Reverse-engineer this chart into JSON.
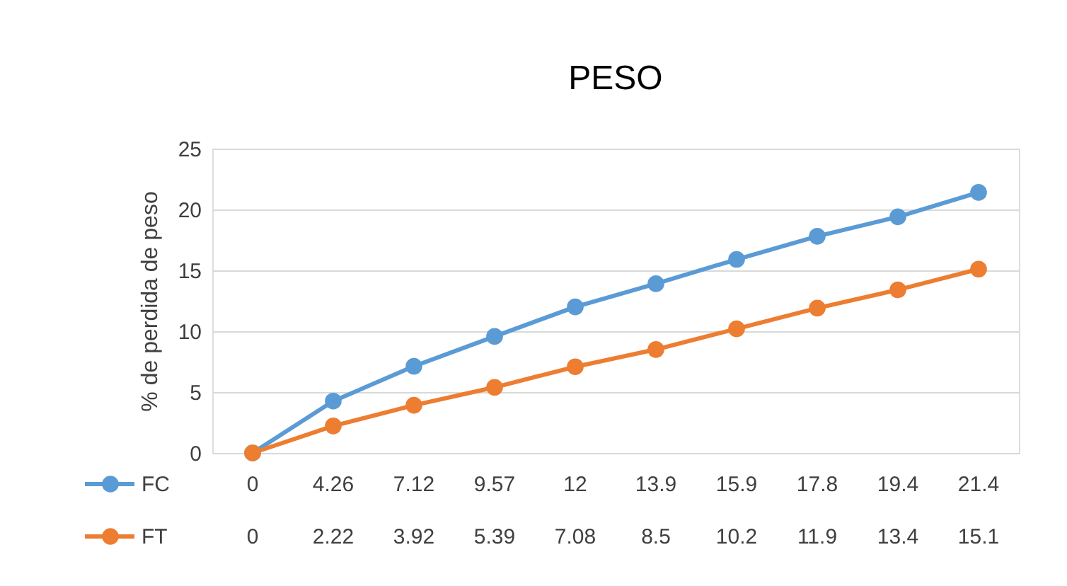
{
  "chart_data": {
    "type": "line",
    "title": "PESO",
    "ylabel": "% de perdida de peso",
    "categories": [
      null,
      null,
      null,
      null,
      null,
      null,
      null,
      null,
      null,
      null
    ],
    "series": [
      {
        "name": "FC",
        "color": "#5b9bd5",
        "values": [
          0,
          4.26,
          7.12,
          9.57,
          12,
          13.9,
          15.9,
          17.8,
          19.4,
          21.4
        ]
      },
      {
        "name": "FT",
        "color": "#ed7d31",
        "values": [
          0,
          2.22,
          3.92,
          5.39,
          7.08,
          8.5,
          10.2,
          11.9,
          13.4,
          15.1
        ]
      }
    ],
    "ylim": [
      0,
      25
    ],
    "yticks": [
      0,
      5,
      10,
      15,
      20,
      25
    ],
    "grid": "y",
    "legend": "bottom left",
    "marker": "circle",
    "line_style": "solid",
    "data_labels": true
  }
}
